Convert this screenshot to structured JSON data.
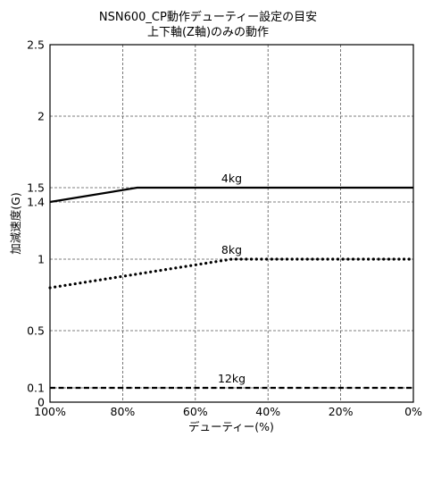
{
  "chart_data": {
    "type": "line",
    "title": "NSN600_CP動作デューティー設定の目安",
    "subtitle": "上下軸(Z軸)のみの動作",
    "xlabel": "デューティー(%)",
    "ylabel": "加減速度(G)",
    "xlim": [
      100,
      0
    ],
    "ylim": [
      0,
      2.5
    ],
    "x_ticks": [
      "100%",
      "80%",
      "60%",
      "40%",
      "20%",
      "0%"
    ],
    "y_ticks": [
      "0",
      "0.1",
      "0.5",
      "1",
      "1.4",
      "1.5",
      "2",
      "2.5"
    ],
    "grid": true,
    "series": [
      {
        "name": "4kg",
        "style": "solid",
        "x": [
          100,
          76,
          0
        ],
        "y": [
          1.4,
          1.5,
          1.5
        ]
      },
      {
        "name": "8kg",
        "style": "dotted",
        "x": [
          100,
          50,
          0
        ],
        "y": [
          0.8,
          1.0,
          1.0
        ]
      },
      {
        "name": "12kg",
        "style": "dashed",
        "x": [
          100,
          0
        ],
        "y": [
          0.1,
          0.1
        ]
      }
    ]
  }
}
